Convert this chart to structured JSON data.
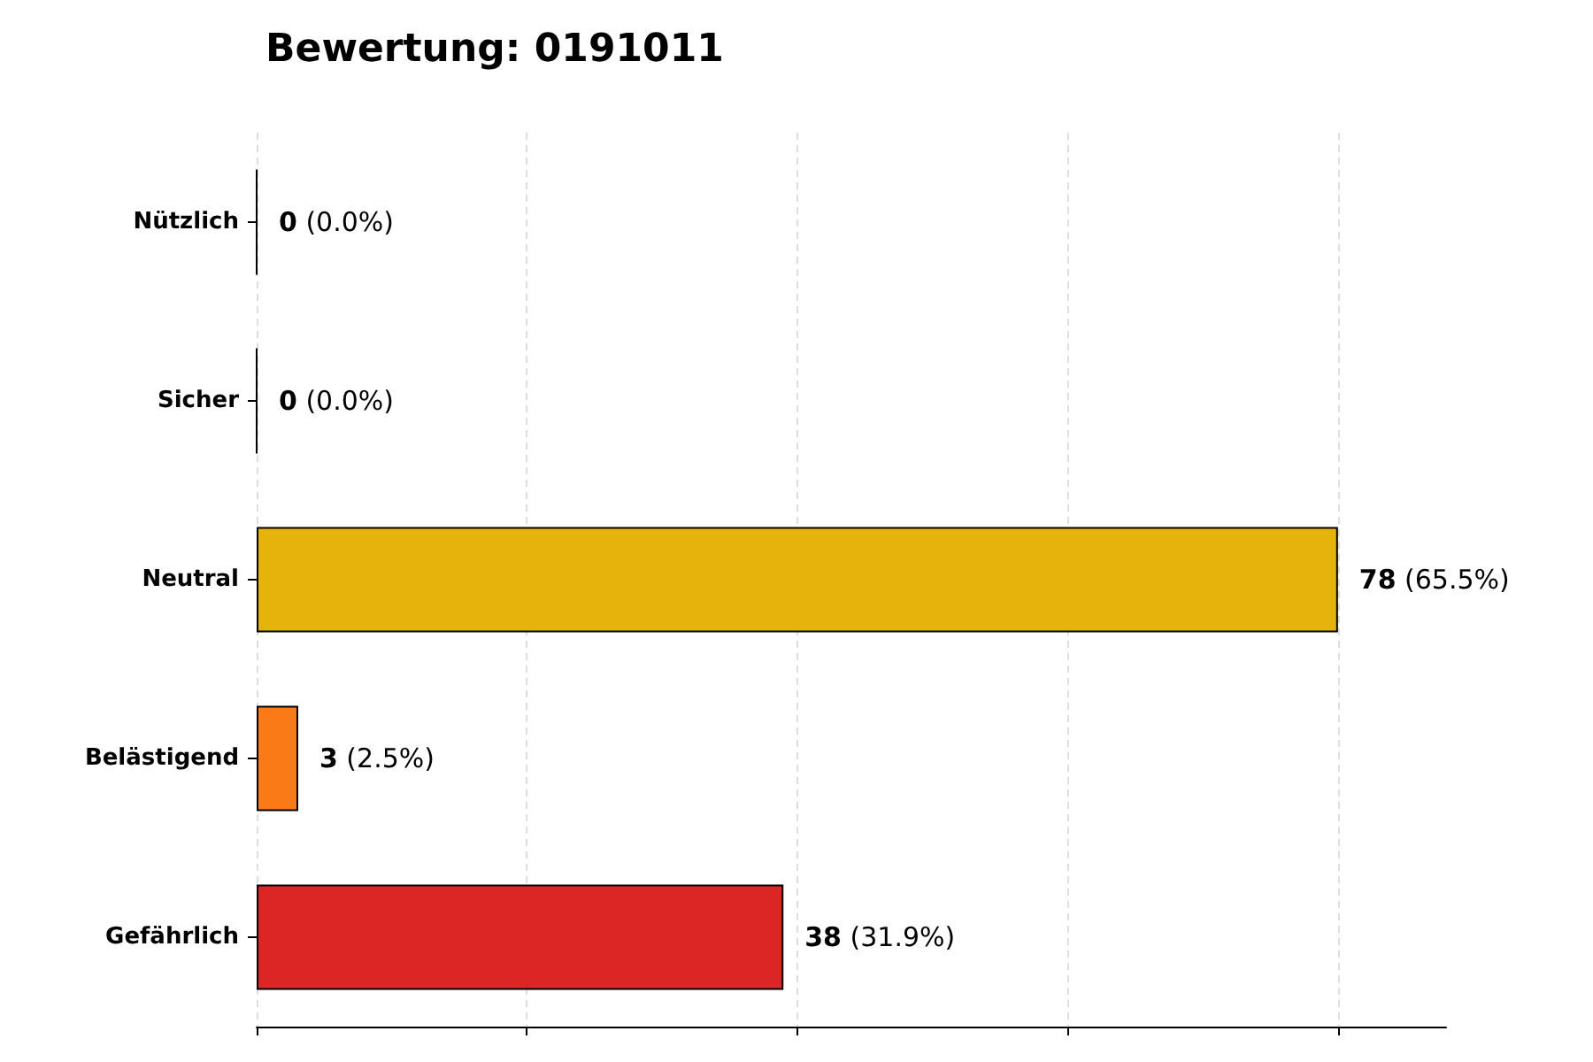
{
  "chart_data": {
    "type": "bar",
    "orientation": "horizontal",
    "title": "Bewertung: 0191011",
    "categories": [
      "Nützlich",
      "Sicher",
      "Neutral",
      "Belästigend",
      "Gefährlich"
    ],
    "values": [
      0,
      0,
      78,
      3,
      38
    ],
    "colors": [
      null,
      null,
      "#e6b30c",
      "#f97a16",
      "#dc2626"
    ],
    "value_labels": [
      "0 (0.0%)",
      "0 (0.0%)",
      "78 (65.5%)",
      "3 (2.5%)",
      "38 (31.9%)"
    ],
    "xlim": [
      0,
      85.8
    ],
    "xticks": [
      {
        "value": 0,
        "label": null
      },
      {
        "value": 19.5,
        "label": null
      },
      {
        "value": 39,
        "label": null
      },
      {
        "value": 58.5,
        "label": null
      },
      {
        "value": 78,
        "label": null
      }
    ],
    "grid": "x",
    "tick_labels": "y"
  }
}
